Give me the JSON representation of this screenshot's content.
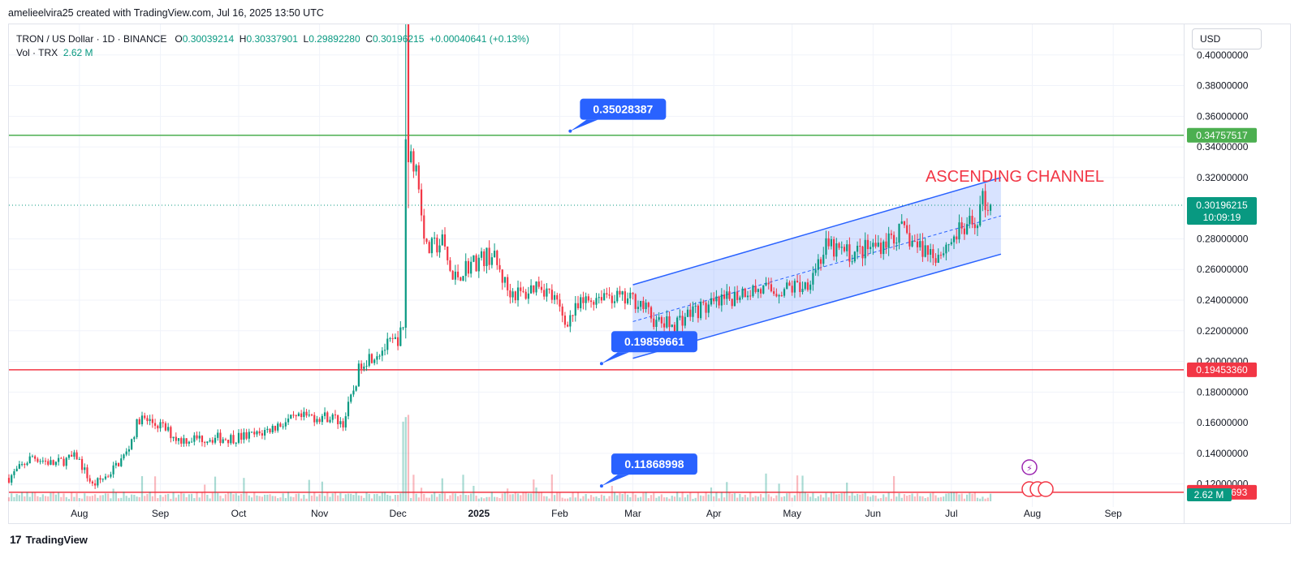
{
  "caption": "amelieelvira25 created with TradingView.com, Jul 16, 2025 13:50 UTC",
  "legend": {
    "symbol": "TRON / US Dollar · 1D · BINANCE",
    "o_label": "O",
    "o": "0.30039214",
    "h_label": "H",
    "h": "0.30337901",
    "l_label": "L",
    "l": "0.29892280",
    "c_label": "C",
    "c": "0.30196215",
    "change": "+0.00040641 (+0.13%)",
    "vol_label": "Vol · TRX",
    "vol": "2.62 M"
  },
  "currency": "USD",
  "footer": {
    "logo_text": "TradingView",
    "logo_icon": "tradingview-logo-icon"
  },
  "colors": {
    "up": "#089981",
    "down": "#f23645",
    "green_line": "#4caf50",
    "red_line": "#f23645",
    "channel": "#2962ff",
    "channel_fill": "rgba(41,98,255,0.18)",
    "label_blue": "#2962ff"
  },
  "chart_data": {
    "type": "candlestick",
    "title": "ASCENDING CHANNEL",
    "x_ticks": [
      "Aug",
      "Sep",
      "Oct",
      "Nov",
      "Dec",
      "2025",
      "Feb",
      "Mar",
      "Apr",
      "May",
      "Jun",
      "Jul",
      "Aug",
      "Sep"
    ],
    "y_ticks": [
      "0.40000000",
      "0.38000000",
      "0.36000000",
      "0.34000000",
      "0.32000000",
      "0.28000000",
      "0.26000000",
      "0.24000000",
      "0.22000000",
      "0.20000000",
      "0.18000000",
      "0.16000000",
      "0.14000000",
      "0.12000000"
    ],
    "y_range": [
      0.105,
      0.42
    ],
    "date_range": [
      "2024-07-05",
      "2025-09-28"
    ],
    "horizontal_lines": [
      {
        "price": 0.34757517,
        "label": "0.34757517",
        "color": "#4caf50"
      },
      {
        "price": 0.1945336,
        "label": "0.19453360",
        "color": "#f23645"
      },
      {
        "price": 0.11462693,
        "label": "0.11462693",
        "color": "#f23645"
      }
    ],
    "last_price": {
      "price": 0.30196215,
      "label": "0.30196215",
      "countdown": "10:09:19"
    },
    "volume_label": "2.62 M",
    "callouts": [
      {
        "text": "0.35028387",
        "date": "2025-02-05",
        "price": 0.35028387
      },
      {
        "text": "0.19859661",
        "date": "2025-02-17",
        "price": 0.19859661
      },
      {
        "text": "0.11868998",
        "date": "2025-02-17",
        "price": 0.11868998
      }
    ],
    "channel": {
      "start_date": "2025-03-01",
      "end_date": "2025-07-20",
      "upper": [
        0.25,
        0.32
      ],
      "lower": [
        0.202,
        0.27
      ],
      "mid": [
        0.226,
        0.295
      ]
    },
    "path": [
      [
        "2024-07-05",
        0.124
      ],
      [
        "2024-07-14",
        0.138
      ],
      [
        "2024-07-22",
        0.133
      ],
      [
        "2024-07-31",
        0.138
      ],
      [
        "2024-08-06",
        0.119
      ],
      [
        "2024-08-12",
        0.126
      ],
      [
        "2024-08-19",
        0.14
      ],
      [
        "2024-08-24",
        0.163
      ],
      [
        "2024-09-01",
        0.158
      ],
      [
        "2024-09-08",
        0.149
      ],
      [
        "2024-09-18",
        0.15
      ],
      [
        "2024-09-28",
        0.15
      ],
      [
        "2024-10-08",
        0.152
      ],
      [
        "2024-10-18",
        0.16
      ],
      [
        "2024-10-28",
        0.164
      ],
      [
        "2024-11-05",
        0.164
      ],
      [
        "2024-11-10",
        0.16
      ],
      [
        "2024-11-13",
        0.175
      ],
      [
        "2024-11-17",
        0.2
      ],
      [
        "2024-11-22",
        0.205
      ],
      [
        "2024-11-27",
        0.21
      ],
      [
        "2024-11-30",
        0.213
      ],
      [
        "2024-12-03",
        0.22
      ],
      [
        "2024-12-04",
        0.345
      ],
      [
        "2024-12-08",
        0.327
      ],
      [
        "2024-12-12",
        0.272
      ],
      [
        "2024-12-18",
        0.278
      ],
      [
        "2024-12-22",
        0.253
      ],
      [
        "2024-12-28",
        0.263
      ],
      [
        "2025-01-06",
        0.27
      ],
      [
        "2025-01-12",
        0.247
      ],
      [
        "2025-01-18",
        0.243
      ],
      [
        "2025-01-24",
        0.252
      ],
      [
        "2025-01-30",
        0.24
      ],
      [
        "2025-02-03",
        0.226
      ],
      [
        "2025-02-10",
        0.238
      ],
      [
        "2025-02-18",
        0.245
      ],
      [
        "2025-02-25",
        0.24
      ],
      [
        "2025-03-03",
        0.24
      ],
      [
        "2025-03-10",
        0.225
      ],
      [
        "2025-03-16",
        0.224
      ],
      [
        "2025-03-24",
        0.233
      ],
      [
        "2025-04-04",
        0.238
      ],
      [
        "2025-04-13",
        0.247
      ],
      [
        "2025-04-24",
        0.246
      ],
      [
        "2025-05-06",
        0.25
      ],
      [
        "2025-05-14",
        0.274
      ],
      [
        "2025-05-24",
        0.27
      ],
      [
        "2025-06-03",
        0.276
      ],
      [
        "2025-06-12",
        0.285
      ],
      [
        "2025-06-18",
        0.275
      ],
      [
        "2025-06-26",
        0.27
      ],
      [
        "2025-07-03",
        0.283
      ],
      [
        "2025-07-10",
        0.29
      ],
      [
        "2025-07-13",
        0.305
      ],
      [
        "2025-07-16",
        0.302
      ]
    ]
  }
}
